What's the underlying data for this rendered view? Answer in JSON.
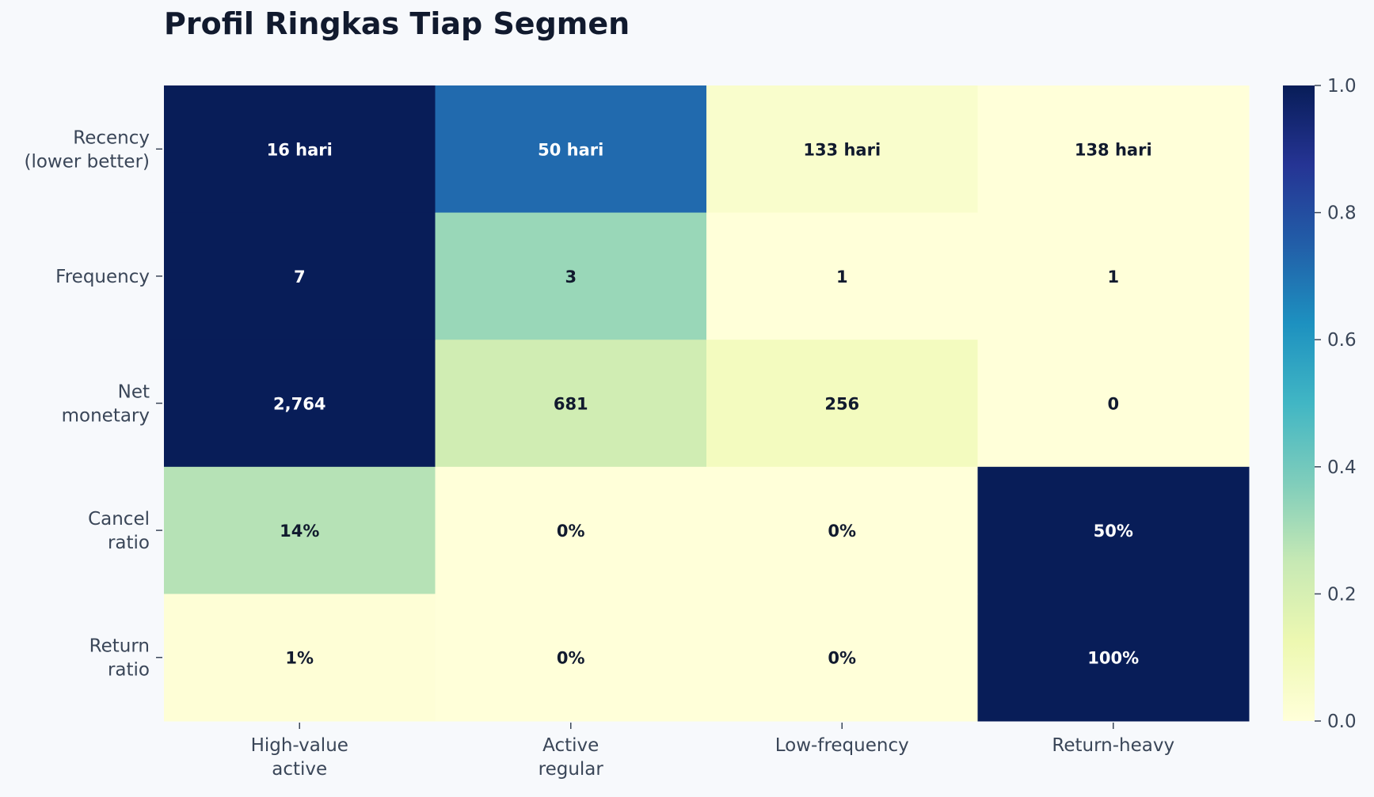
{
  "chart_data": {
    "type": "heatmap",
    "title": "Profil Ringkas Tiap Segmen",
    "columns": [
      [
        "High-value",
        "active"
      ],
      [
        "Active",
        "regular"
      ],
      [
        "Low-frequency"
      ],
      [
        "Return-heavy"
      ]
    ],
    "rows": [
      [
        "Recency",
        "(lower better)"
      ],
      [
        "Frequency"
      ],
      [
        "Net",
        "monetary"
      ],
      [
        "Cancel",
        "ratio"
      ],
      [
        "Return",
        "ratio"
      ]
    ],
    "normalized_values": [
      [
        1.0,
        0.72,
        0.04,
        0.0
      ],
      [
        1.0,
        0.33,
        0.0,
        0.0
      ],
      [
        1.0,
        0.22,
        0.08,
        0.0
      ],
      [
        0.28,
        0.0,
        0.0,
        1.0
      ],
      [
        0.01,
        0.0,
        0.0,
        1.0
      ]
    ],
    "annotations": [
      [
        "16 hari",
        "50 hari",
        "133 hari",
        "138 hari"
      ],
      [
        "7",
        "3",
        "1",
        "1"
      ],
      [
        "2,764",
        "681",
        "256",
        "0"
      ],
      [
        "14%",
        "0%",
        "0%",
        "50%"
      ],
      [
        "1%",
        "0%",
        "0%",
        "100%"
      ]
    ],
    "colorbar": {
      "range": [
        0.0,
        1.0
      ],
      "ticks": [
        "0.0",
        "0.2",
        "0.4",
        "0.6",
        "0.8",
        "1.0"
      ],
      "colormap": "YlGnBu"
    },
    "grid": false
  },
  "colors": {
    "background": "#f7f9fc",
    "axis_text": "#3a4658",
    "title": "#111a2e",
    "dark_text": "#111a2e",
    "light_text": "#ffffff"
  }
}
